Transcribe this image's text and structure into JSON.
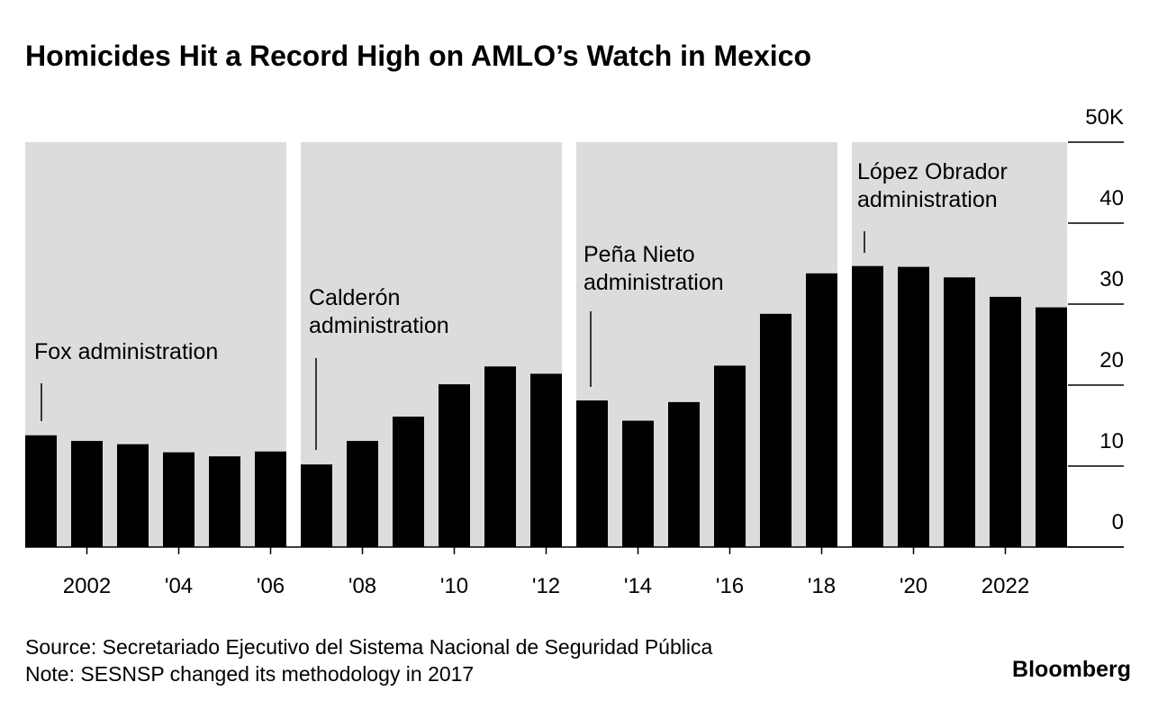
{
  "chart_data": {
    "type": "bar",
    "title": "Homicides Hit a Record High on AMLO’s Watch in Mexico",
    "categories": [
      null,
      "2002",
      null,
      "'04",
      null,
      "'06",
      null,
      "'08",
      null,
      "'10",
      null,
      "'12",
      null,
      "'14",
      null,
      "'16",
      null,
      "'18",
      null,
      "'20",
      null,
      "2022",
      null
    ],
    "values": [
      13.8,
      13.1,
      12.7,
      11.7,
      11.2,
      11.8,
      10.2,
      13.1,
      16.1,
      20.1,
      22.3,
      21.4,
      18.1,
      15.6,
      17.9,
      22.4,
      28.8,
      33.8,
      34.7,
      34.6,
      33.3,
      30.9,
      29.6
    ],
    "color": "#000000",
    "shade_color": "#dcdcdc",
    "ylim": [
      0,
      50
    ],
    "yticks": [
      0,
      10,
      20,
      30,
      40,
      {
        "value": 50,
        "label": "50K"
      }
    ],
    "annotations": [
      {
        "lines": [
          "Fox administration"
        ]
      },
      {
        "lines": [
          "Calderón",
          "administration"
        ]
      },
      {
        "lines": [
          "Peña Nieto",
          "administration"
        ]
      },
      {
        "lines": [
          "López Obrador",
          "administration"
        ]
      }
    ],
    "source": "Source: Secretariado Ejecutivo del Sistema Nacional de Seguridad Pública",
    "note": "Note: SESNSP changed its methodology in 2017",
    "brand": "Bloomberg"
  }
}
